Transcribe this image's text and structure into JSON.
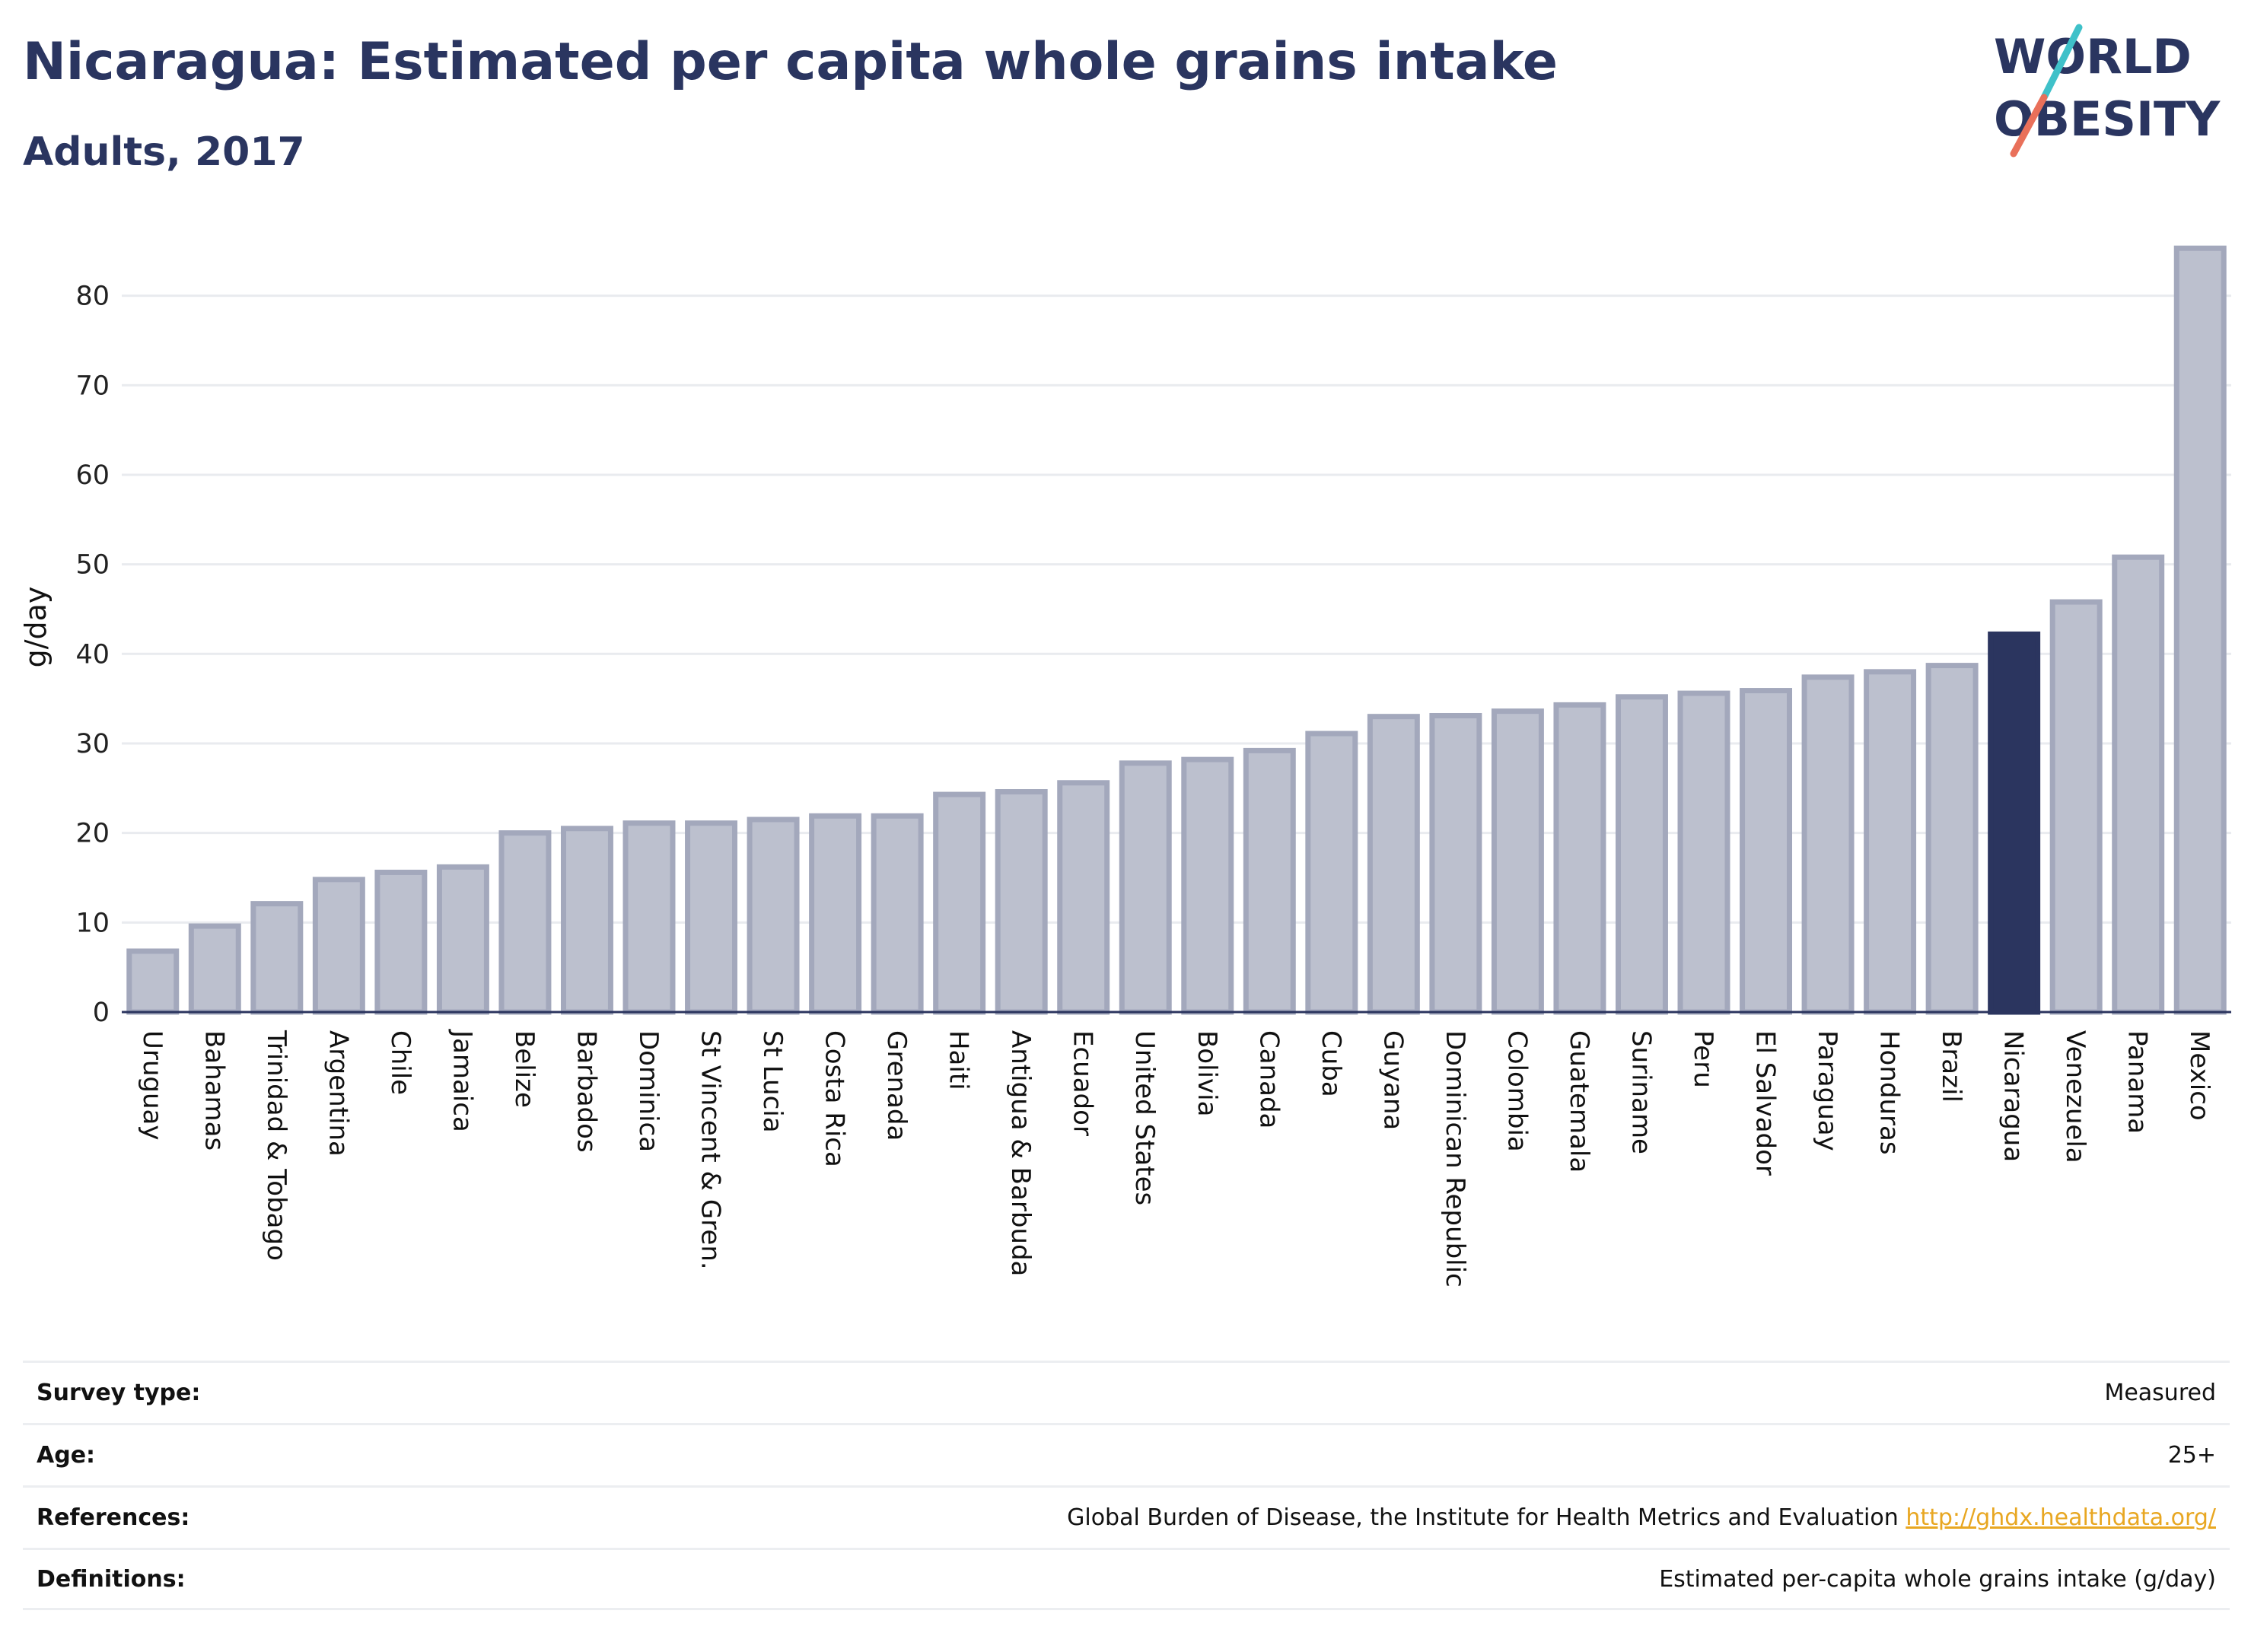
{
  "header": {
    "title": "Nicaragua: Estimated per capita whole grains intake",
    "subtitle": "Adults, 2017"
  },
  "logo": {
    "line1": "WORLD",
    "line2": "OBESITY",
    "slash_colors": [
      "#3fc1c9",
      "#e9705a"
    ]
  },
  "colors": {
    "bar": "#bcc0ce",
    "bar_stroke": "#a3a8bc",
    "highlight": "#2b355f",
    "grid": "#e9ebef",
    "title": "#2a3560",
    "link": "#e8a722"
  },
  "chart_data": {
    "type": "bar",
    "title": "Nicaragua: Estimated per capita whole grains intake",
    "subtitle": "Adults, 2017",
    "xlabel": "",
    "ylabel": "g/day",
    "ylim": [
      0,
      86
    ],
    "yticks": [
      0,
      10,
      20,
      30,
      40,
      50,
      60,
      70,
      80
    ],
    "grid": true,
    "highlight": "Nicaragua",
    "categories": [
      "Uruguay",
      "Bahamas",
      "Trinidad & Tobago",
      "Argentina",
      "Chile",
      "Jamaica",
      "Belize",
      "Barbados",
      "Dominica",
      "St Vincent & Gren.",
      "St Lucia",
      "Costa Rica",
      "Grenada",
      "Haiti",
      "Antigua & Barbuda",
      "Ecuador",
      "United States",
      "Bolivia",
      "Canada",
      "Cuba",
      "Guyana",
      "Dominican Republic",
      "Colombia",
      "Guatemala",
      "Suriname",
      "Peru",
      "El Salvador",
      "Paraguay",
      "Honduras",
      "Brazil",
      "Nicaragua",
      "Venezuela",
      "Panama",
      "Mexico"
    ],
    "values": [
      6.8,
      9.6,
      12.1,
      14.8,
      15.6,
      16.2,
      20.0,
      20.5,
      21.1,
      21.1,
      21.5,
      21.9,
      21.9,
      24.3,
      24.6,
      25.6,
      27.8,
      28.2,
      29.2,
      31.1,
      33.0,
      33.1,
      33.6,
      34.3,
      35.2,
      35.6,
      35.9,
      37.4,
      38.0,
      38.7,
      42.2,
      45.8,
      50.8,
      85.3
    ]
  },
  "info": {
    "rows": [
      {
        "key": "Survey type:",
        "value": "Measured"
      },
      {
        "key": "Age:",
        "value": "25+"
      },
      {
        "key": "References:",
        "value": "Global Burden of Disease, the Institute for Health Metrics and Evaluation",
        "link": "http://ghdx.healthdata.org/"
      },
      {
        "key": "Definitions:",
        "value": "Estimated per-capita whole grains intake (g/day)"
      }
    ]
  }
}
